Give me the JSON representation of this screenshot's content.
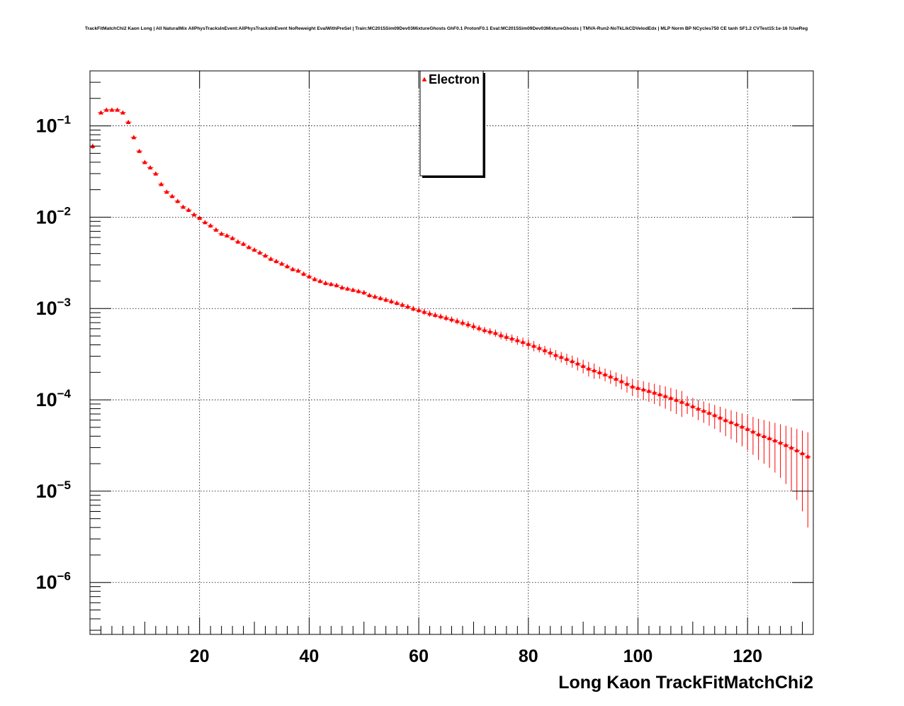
{
  "chart_data": {
    "type": "scatter",
    "title": "TrackFitMatchChi2 Kaon Long | All NaturalMix AllPhysTracksInEvent:AllPhysTracksInEvent NoReweight EvalWithPreSel | Train:MC2015Sim09Dev03MixtureGhosts GhF0.1 ProtonF0.1 Eval:MC2015Sim09Dev03MixtureGhosts | TMVA-Run2-NoTkLikCDVelodEdx | MLP Norm BP NCycles750 CE tanh SF1.2 CVTest15:1e-16 !UseReg",
    "xlabel": "Long Kaon TrackFitMatchChi2",
    "ylabel": "",
    "xlim": [
      0,
      132
    ],
    "ylim": [
      2.7e-07,
      0.4
    ],
    "yscale": "log",
    "grid": true,
    "legend_position": "top-center",
    "x_ticks": [
      20,
      40,
      60,
      80,
      100,
      120
    ],
    "x_tick_labels": [
      "20",
      "40",
      "60",
      "80",
      "100",
      "120"
    ],
    "y_ticks": [
      {
        "value": 0.1,
        "mantissa": "10",
        "exp": "−1"
      },
      {
        "value": 0.01,
        "mantissa": "10",
        "exp": "−2"
      },
      {
        "value": 0.001,
        "mantissa": "10",
        "exp": "−3"
      },
      {
        "value": 0.0001,
        "mantissa": "10",
        "exp": "−4"
      },
      {
        "value": 1e-05,
        "mantissa": "10",
        "exp": "−5"
      },
      {
        "value": 1e-06,
        "mantissa": "10",
        "exp": "−6"
      }
    ],
    "bin_width": 1.1,
    "series": [
      {
        "name": "Electron",
        "color": "#ff0000",
        "marker": "triangle-up",
        "x": [
          0.5,
          2,
          3,
          4,
          5,
          6,
          7,
          8,
          9,
          10,
          11,
          12,
          13,
          14,
          15,
          16,
          17,
          18,
          19,
          20,
          21,
          22,
          23,
          24,
          25,
          26,
          27,
          28,
          29,
          30,
          31,
          32,
          33,
          34,
          35,
          36,
          37,
          38,
          39,
          40,
          41,
          42,
          43,
          44,
          45,
          46,
          47,
          48,
          49,
          50,
          51,
          52,
          53,
          54,
          55,
          56,
          57,
          58,
          59,
          60,
          61,
          62,
          63,
          64,
          65,
          66,
          67,
          68,
          69,
          70,
          71,
          72,
          73,
          74,
          75,
          76,
          77,
          78,
          79,
          80,
          81,
          82,
          83,
          84,
          85,
          86,
          87,
          88,
          89,
          90,
          91,
          92,
          93,
          94,
          95,
          96,
          97,
          98,
          99,
          100,
          101,
          102,
          103,
          104,
          105,
          106,
          107,
          108,
          109,
          110,
          111,
          112,
          113,
          114,
          115,
          116,
          117,
          118,
          119,
          120,
          121,
          122,
          123,
          124,
          125,
          126,
          127,
          128,
          129,
          130,
          131
        ],
        "y": [
          0.06,
          0.14,
          0.15,
          0.15,
          0.15,
          0.14,
          0.11,
          0.075,
          0.053,
          0.04,
          0.035,
          0.03,
          0.023,
          0.019,
          0.017,
          0.015,
          0.013,
          0.012,
          0.0107,
          0.0098,
          0.0088,
          0.0081,
          0.0073,
          0.0066,
          0.0063,
          0.0059,
          0.0054,
          0.0051,
          0.0047,
          0.0044,
          0.0041,
          0.0038,
          0.0035,
          0.0033,
          0.0031,
          0.0029,
          0.0027,
          0.0026,
          0.0024,
          0.00225,
          0.0021,
          0.002,
          0.0019,
          0.00185,
          0.0018,
          0.0017,
          0.00165,
          0.0016,
          0.00155,
          0.0015,
          0.0014,
          0.00135,
          0.0013,
          0.00125,
          0.0012,
          0.00115,
          0.0011,
          0.00105,
          0.001,
          0.00096,
          0.00092,
          0.00088,
          0.00085,
          0.00082,
          0.00079,
          0.00076,
          0.00073,
          0.0007,
          0.00067,
          0.00064,
          0.00061,
          0.00058,
          0.00056,
          0.00054,
          0.00051,
          0.00049,
          0.00047,
          0.00045,
          0.00043,
          0.00041,
          0.00039,
          0.00037,
          0.00035,
          0.00033,
          0.00031,
          0.000295,
          0.00028,
          0.000265,
          0.00025,
          0.000235,
          0.00022,
          0.00021,
          0.0002,
          0.00019,
          0.00018,
          0.00017,
          0.00016,
          0.00015,
          0.00014,
          0.000135,
          0.00013,
          0.000125,
          0.00012,
          0.000115,
          0.00011,
          0.000105,
          0.0001,
          9.5e-05,
          9e-05,
          8.5e-05,
          8e-05,
          7.6e-05,
          7.2e-05,
          6.8e-05,
          6.4e-05,
          6e-05,
          5.7e-05,
          5.4e-05,
          5.1e-05,
          4.8e-05,
          4.5e-05,
          4.2e-05,
          4e-05,
          3.8e-05,
          3.6e-05,
          3.4e-05,
          3.2e-05,
          3e-05,
          2.8e-05,
          2.6e-05,
          2.4e-05
        ],
        "err": [
          0.004,
          0.006,
          0.006,
          0.006,
          0.006,
          0.005,
          0.004,
          0.003,
          0.002,
          0.0018,
          0.0016,
          0.0014,
          0.0011,
          0.0009,
          0.0008,
          0.0007,
          0.0006,
          0.0006,
          0.0005,
          0.0005,
          0.00045,
          0.00041,
          0.00037,
          0.00034,
          0.00032,
          0.0003,
          0.00028,
          0.00026,
          0.00024,
          0.00023,
          0.00021,
          0.0002,
          0.00019,
          0.00018,
          0.00017,
          0.00016,
          0.00015,
          0.00014,
          0.00013,
          0.00012,
          0.00012,
          0.00011,
          0.00011,
          0.0001,
          0.0001,
          0.0001,
          9e-05,
          9e-05,
          9e-05,
          9e-05,
          8e-05,
          8e-05,
          8e-05,
          8e-05,
          8e-05,
          7e-05,
          7e-05,
          7e-05,
          7e-05,
          7e-05,
          7e-05,
          7e-05,
          6e-05,
          6e-05,
          6e-05,
          6e-05,
          6e-05,
          6e-05,
          6e-05,
          6e-05,
          5e-05,
          5e-05,
          5e-05,
          5e-05,
          5e-05,
          5e-05,
          5e-05,
          5e-05,
          5e-05,
          5e-05,
          5e-05,
          4e-05,
          4e-05,
          4e-05,
          4e-05,
          4e-05,
          4e-05,
          4e-05,
          4e-05,
          4e-05,
          4e-05,
          4e-05,
          3e-05,
          3e-05,
          3e-05,
          3e-05,
          3e-05,
          3e-05,
          3e-05,
          3e-05,
          3e-05,
          3e-05,
          3e-05,
          3e-05,
          3e-05,
          3e-05,
          3e-05,
          3e-05,
          2e-05,
          2e-05,
          2e-05,
          2e-05,
          2e-05,
          2e-05,
          2e-05,
          2e-05,
          2e-05,
          2e-05,
          2e-05,
          2e-05,
          2e-05,
          2e-05,
          2e-05,
          2e-05,
          2e-05,
          2e-05,
          2e-05,
          2e-05,
          2e-05,
          2e-05,
          2e-05
        ]
      }
    ]
  }
}
